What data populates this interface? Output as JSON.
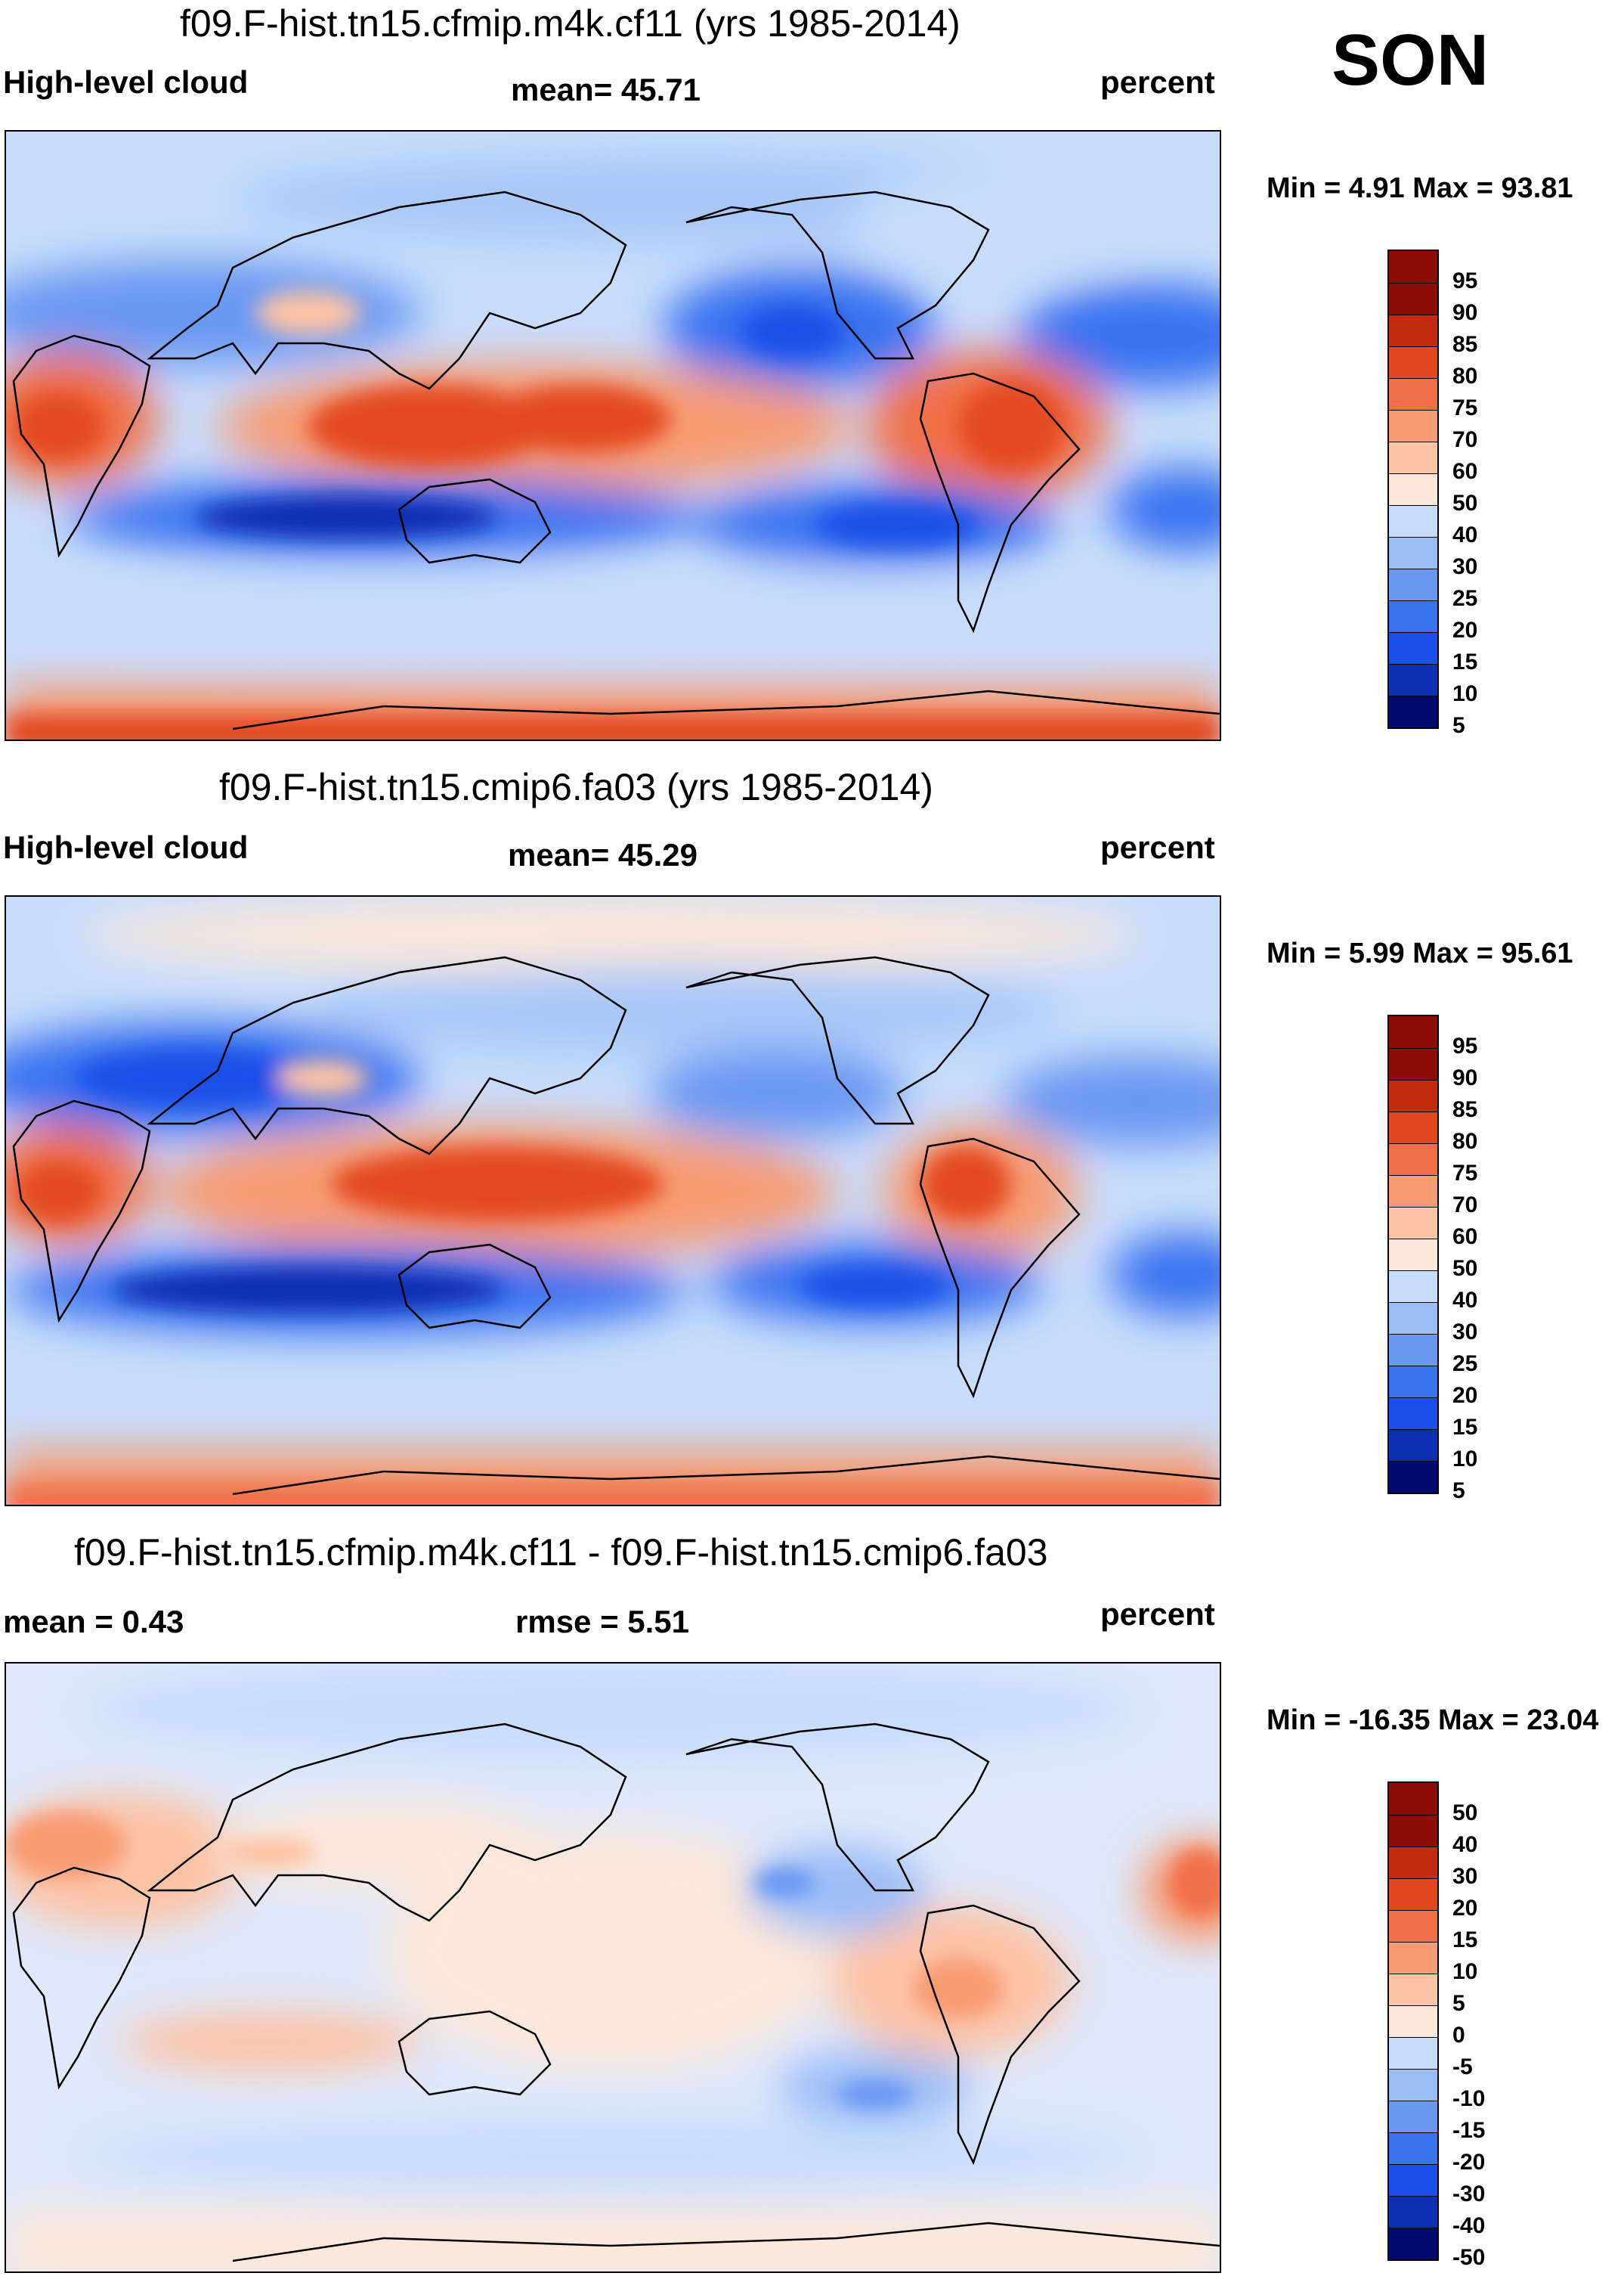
{
  "season": "SON",
  "colors": {
    "seq": [
      "#020a6e",
      "#0b2fb0",
      "#1a50e8",
      "#3a72f0",
      "#6b98f2",
      "#9dbdf6",
      "#c8ddfb",
      "#fbe8da",
      "#fcc3a6",
      "#f79c74",
      "#f0704a",
      "#e34820",
      "#c42a0c",
      "#8e0c06"
    ],
    "diff": [
      "#020a6e",
      "#0b2fb0",
      "#1a50e8",
      "#3a72f0",
      "#6b98f2",
      "#9dbdf6",
      "#c8ddfb",
      "#fbe8da",
      "#fcc3a6",
      "#f79c74",
      "#f0704a",
      "#e34820",
      "#c42a0c",
      "#8e0c06"
    ]
  },
  "chart_data": [
    {
      "type": "heatmap",
      "title": "f09.F-hist.tn15.cfmip.m4k.cf11 (yrs 1985-2014)",
      "variable": "High-level cloud",
      "mean_label": "mean=  45.71",
      "units": "percent",
      "minmax": "Min =   4.91 Max =  93.81",
      "min": 4.91,
      "max": 93.81,
      "mean": 45.71,
      "levels": [
        "5",
        "10",
        "15",
        "20",
        "25",
        "30",
        "40",
        "50",
        "60",
        "70",
        "75",
        "80",
        "85",
        "90",
        "95"
      ]
    },
    {
      "type": "heatmap",
      "title": "f09.F-hist.tn15.cmip6.fa03 (yrs 1985-2014)",
      "variable": "High-level cloud",
      "mean_label": "mean=  45.29",
      "units": "percent",
      "minmax": "Min =   5.99 Max =  95.61",
      "min": 5.99,
      "max": 95.61,
      "mean": 45.29,
      "levels": [
        "5",
        "10",
        "15",
        "20",
        "25",
        "30",
        "40",
        "50",
        "60",
        "70",
        "75",
        "80",
        "85",
        "90",
        "95"
      ]
    },
    {
      "type": "heatmap",
      "title": "f09.F-hist.tn15.cfmip.m4k.cf11 - f09.F-hist.tn15.cmip6.fa03",
      "mean_label": "mean =   0.43",
      "rmse_label": "rmse =   5.51",
      "units": "percent",
      "minmax": "Min = -16.35 Max =  23.04",
      "min": -16.35,
      "max": 23.04,
      "mean": 0.43,
      "rmse": 5.51,
      "levels": [
        "-50",
        "-40",
        "-30",
        "-20",
        "-15",
        "-10",
        "-5",
        "0",
        "5",
        "10",
        "15",
        "20",
        "30",
        "40",
        "50"
      ]
    }
  ]
}
